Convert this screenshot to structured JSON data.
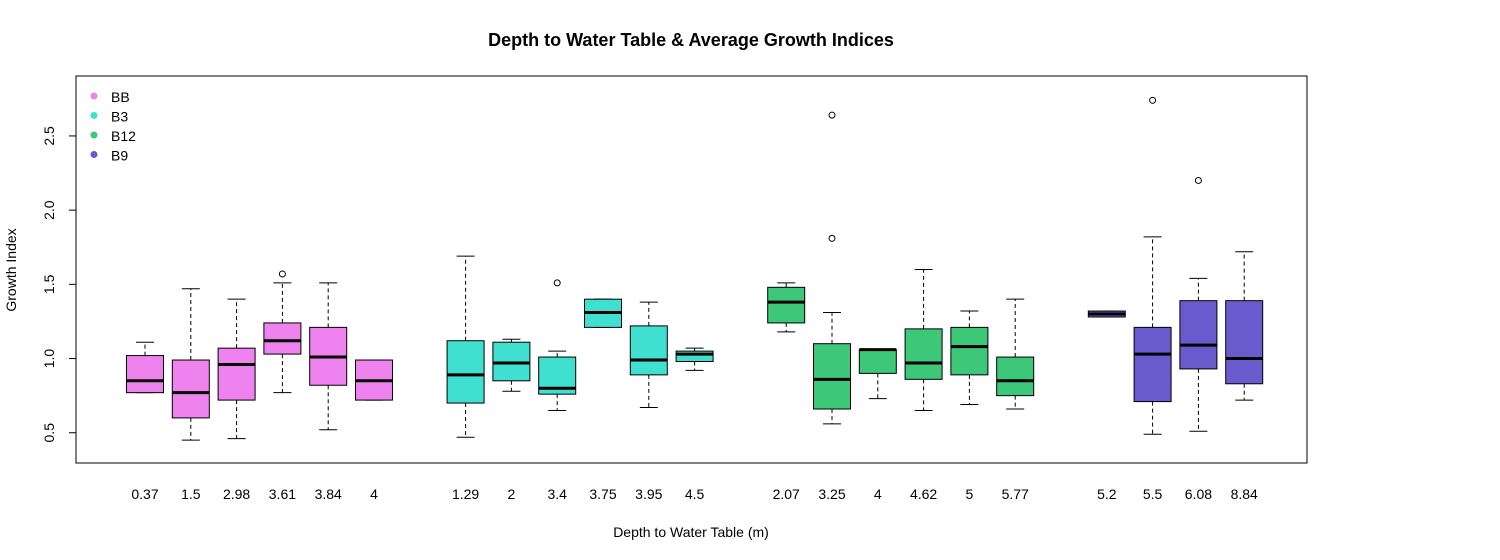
{
  "chart_data": {
    "type": "box",
    "title": "Depth to Water Table & Average Growth Indices",
    "xlabel": "Depth to Water Table (m)",
    "ylabel": "Growth Index",
    "ylim": [
      0.35,
      2.85
    ],
    "yticks": [
      0.5,
      1.0,
      1.5,
      2.0,
      2.5
    ],
    "ytick_labels": [
      "0.5",
      "1.0",
      "1.5",
      "2.0",
      "2.5"
    ],
    "legend_position": "top-left",
    "groups": [
      {
        "name": "BB",
        "color": "#ee82ee",
        "boxes": [
          {
            "label": "0.37",
            "min": 0.77,
            "q1": 0.77,
            "median": 0.85,
            "q3": 1.02,
            "max": 1.11,
            "outliers": []
          },
          {
            "label": "1.5",
            "min": 0.45,
            "q1": 0.6,
            "median": 0.77,
            "q3": 0.99,
            "max": 1.47,
            "outliers": []
          },
          {
            "label": "2.98",
            "min": 0.46,
            "q1": 0.72,
            "median": 0.96,
            "q3": 1.07,
            "max": 1.4,
            "outliers": []
          },
          {
            "label": "3.61",
            "min": 0.77,
            "q1": 1.03,
            "median": 1.12,
            "q3": 1.24,
            "max": 1.51,
            "outliers": [
              1.57
            ]
          },
          {
            "label": "3.84",
            "min": 0.52,
            "q1": 0.82,
            "median": 1.01,
            "q3": 1.21,
            "max": 1.51,
            "outliers": []
          },
          {
            "label": "4",
            "min": 0.72,
            "q1": 0.72,
            "median": 0.85,
            "q3": 0.99,
            "max": 0.99,
            "outliers": []
          }
        ]
      },
      {
        "name": "B3",
        "color": "#40e0d0",
        "boxes": [
          {
            "label": "1.29",
            "min": 0.47,
            "q1": 0.7,
            "median": 0.89,
            "q3": 1.12,
            "max": 1.69,
            "outliers": []
          },
          {
            "label": "2",
            "min": 0.78,
            "q1": 0.85,
            "median": 0.97,
            "q3": 1.11,
            "max": 1.13,
            "outliers": []
          },
          {
            "label": "3.4",
            "min": 0.65,
            "q1": 0.76,
            "median": 0.8,
            "q3": 1.01,
            "max": 1.05,
            "outliers": [
              1.51
            ]
          },
          {
            "label": "3.75",
            "min": 1.21,
            "q1": 1.21,
            "median": 1.31,
            "q3": 1.4,
            "max": 1.4,
            "outliers": []
          },
          {
            "label": "3.95",
            "min": 0.67,
            "q1": 0.89,
            "median": 0.99,
            "q3": 1.22,
            "max": 1.38,
            "outliers": []
          },
          {
            "label": "4.5",
            "min": 0.92,
            "q1": 0.98,
            "median": 1.03,
            "q3": 1.05,
            "max": 1.07,
            "outliers": []
          }
        ]
      },
      {
        "name": "B12",
        "color": "#3cc878",
        "boxes": [
          {
            "label": "2.07",
            "min": 1.18,
            "q1": 1.24,
            "median": 1.38,
            "q3": 1.48,
            "max": 1.51,
            "outliers": []
          },
          {
            "label": "3.25",
            "min": 0.56,
            "q1": 0.66,
            "median": 0.86,
            "q3": 1.1,
            "max": 1.31,
            "outliers": [
              1.81,
              2.64
            ]
          },
          {
            "label": "4",
            "min": 0.73,
            "q1": 0.9,
            "median": 1.06,
            "q3": 1.06,
            "max": 1.06,
            "outliers": []
          },
          {
            "label": "4.62",
            "min": 0.65,
            "q1": 0.86,
            "median": 0.97,
            "q3": 1.2,
            "max": 1.6,
            "outliers": []
          },
          {
            "label": "5",
            "min": 0.69,
            "q1": 0.89,
            "median": 1.08,
            "q3": 1.21,
            "max": 1.32,
            "outliers": []
          },
          {
            "label": "5.77",
            "min": 0.66,
            "q1": 0.75,
            "median": 0.85,
            "q3": 1.01,
            "max": 1.4,
            "outliers": []
          }
        ]
      },
      {
        "name": "B9",
        "color": "#6a5acd",
        "boxes": [
          {
            "label": "5.2",
            "min": 1.28,
            "q1": 1.28,
            "median": 1.3,
            "q3": 1.32,
            "max": 1.32,
            "outliers": []
          },
          {
            "label": "5.5",
            "min": 0.49,
            "q1": 0.71,
            "median": 1.03,
            "q3": 1.21,
            "max": 1.82,
            "outliers": [
              2.74
            ]
          },
          {
            "label": "6.08",
            "min": 0.51,
            "q1": 0.93,
            "median": 1.09,
            "q3": 1.39,
            "max": 1.54,
            "outliers": [
              2.2
            ]
          },
          {
            "label": "8.84",
            "min": 0.72,
            "q1": 0.83,
            "median": 1.0,
            "q3": 1.39,
            "max": 1.72,
            "outliers": []
          }
        ]
      }
    ]
  }
}
